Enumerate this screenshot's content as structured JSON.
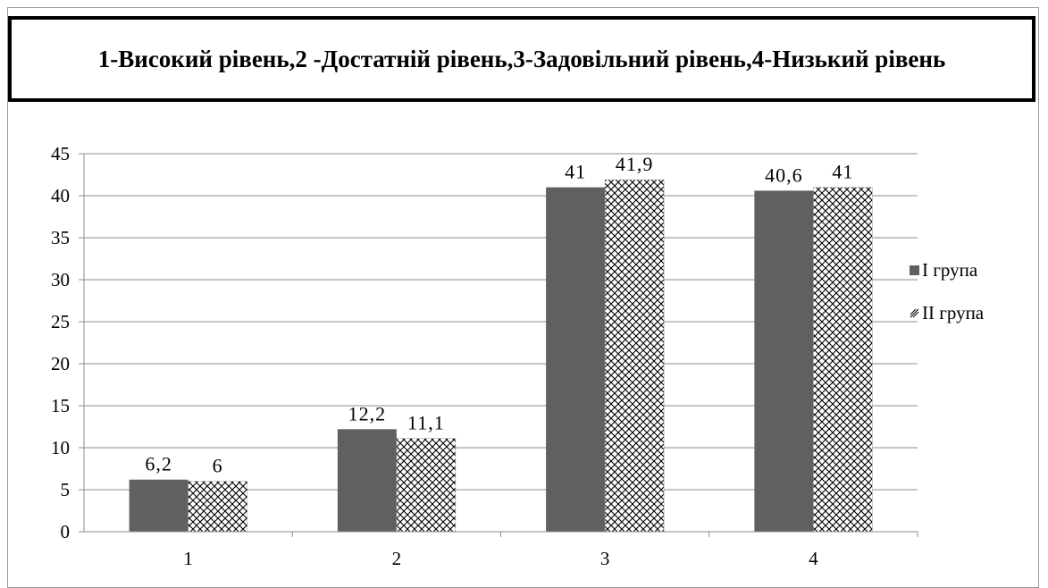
{
  "chart_data": {
    "type": "bar",
    "title": "1-Високий рівень,2 -Достатній рівень,3-Задовільний рівень,4-Низький рівень",
    "categories": [
      "1",
      "2",
      "3",
      "4"
    ],
    "series": [
      {
        "name": "І група",
        "values": [
          6.2,
          12.2,
          41,
          40.6
        ],
        "labels": [
          "6,2",
          "12,2",
          "41",
          "40,6"
        ],
        "color": "#606060",
        "fill": "solid"
      },
      {
        "name": "ІІ група",
        "values": [
          6,
          11.1,
          41.9,
          41
        ],
        "labels": [
          "6",
          "11,1",
          "41,9",
          "41"
        ],
        "color": "#000000",
        "fill": "hatched"
      }
    ],
    "ylim": [
      0,
      45
    ],
    "yticks": [
      "0",
      "5",
      "10",
      "15",
      "20",
      "25",
      "30",
      "35",
      "40",
      "45"
    ],
    "grid": true,
    "legend_position": "right"
  }
}
